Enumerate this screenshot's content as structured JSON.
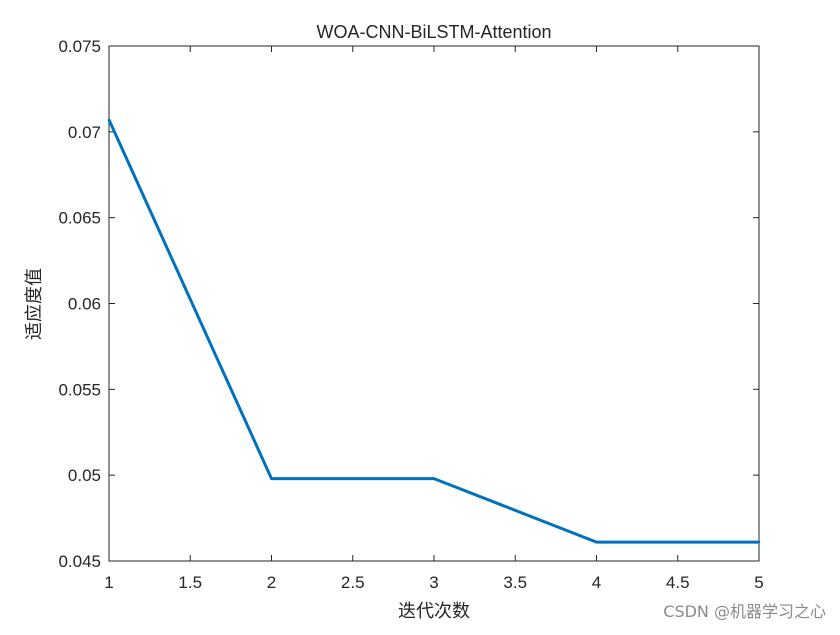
{
  "chart_data": {
    "type": "line",
    "title": "WOA-CNN-BiLSTM-Attention",
    "xlabel": "迭代次数",
    "ylabel": "适应度值",
    "x": [
      1,
      2,
      3,
      4,
      5
    ],
    "series": [
      {
        "values": [
          0.0707,
          0.0498,
          0.0498,
          0.0461,
          0.0461
        ],
        "color": "#0072BD"
      }
    ],
    "xlim": [
      1,
      5
    ],
    "ylim": [
      0.045,
      0.075
    ],
    "xticks": [
      1,
      1.5,
      2,
      2.5,
      3,
      3.5,
      4,
      4.5,
      5
    ],
    "xtick_labels": [
      "1",
      "1.5",
      "2",
      "2.5",
      "3",
      "3.5",
      "4",
      "4.5",
      "5"
    ],
    "yticks": [
      0.045,
      0.05,
      0.055,
      0.06,
      0.065,
      0.07,
      0.075
    ],
    "ytick_labels": [
      "0.045",
      "0.05",
      "0.055",
      "0.06",
      "0.065",
      "0.07",
      "0.075"
    ],
    "grid": false,
    "legend": "none"
  },
  "watermark": "CSDN @机器学习之心"
}
